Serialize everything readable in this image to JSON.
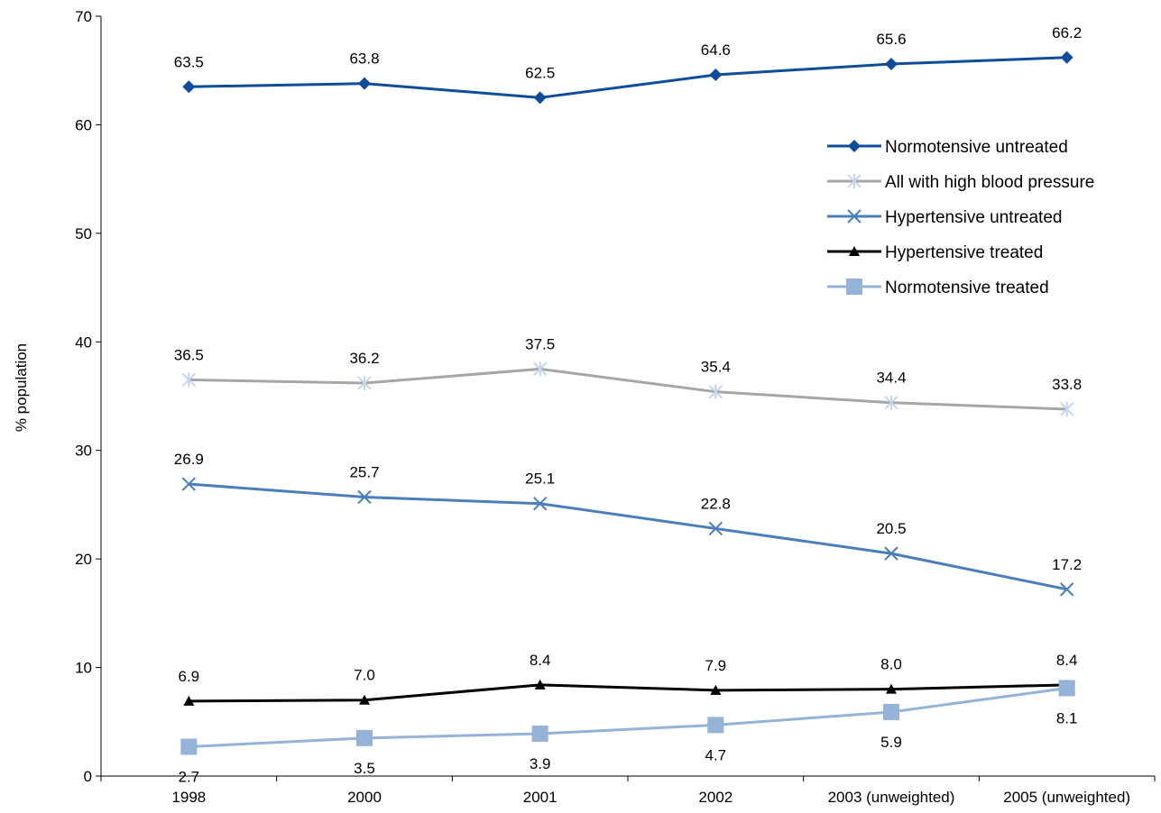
{
  "chart_data": {
    "type": "line",
    "categories": [
      "1998",
      "2000",
      "2001",
      "2002",
      "2003 (unweighted)",
      "2005 (unweighted)"
    ],
    "ylabel": "% population",
    "xlabel": "",
    "title": "",
    "ylim": [
      0,
      70
    ],
    "yticks": [
      0,
      10,
      20,
      30,
      40,
      50,
      60,
      70
    ],
    "grid": false,
    "legend_position": "right",
    "series": [
      {
        "name": "Normotensive untreated",
        "values": [
          63.5,
          63.8,
          62.5,
          64.6,
          65.6,
          66.2
        ],
        "labels": [
          "63.5",
          "63.8",
          "62.5",
          "64.6",
          "65.6",
          "66.2"
        ],
        "label_position": "above",
        "color": "#0F4C9A",
        "marker": "diamond"
      },
      {
        "name": "All with high blood pressure",
        "values": [
          36.5,
          36.2,
          37.5,
          35.4,
          34.4,
          33.8
        ],
        "labels": [
          "36.5",
          "36.2",
          "37.5",
          "35.4",
          "34.4",
          "33.8"
        ],
        "label_position": "above",
        "color": "#A6A6A6",
        "marker_color": "#C5D5EA",
        "marker": "asterisk"
      },
      {
        "name": "Hypertensive untreated",
        "values": [
          26.9,
          25.7,
          25.1,
          22.8,
          20.5,
          17.2
        ],
        "labels": [
          "26.9",
          "25.7",
          "25.1",
          "22.8",
          "20.5",
          "17.2"
        ],
        "label_position": "above",
        "color": "#4A7EBB",
        "marker": "x"
      },
      {
        "name": "Hypertensive treated",
        "values": [
          6.9,
          7.0,
          8.4,
          7.9,
          8.0,
          8.4
        ],
        "labels": [
          "6.9",
          "7.0",
          "8.4",
          "7.9",
          "8.0",
          "8.4"
        ],
        "label_position": "above",
        "color": "#000000",
        "marker": "triangle"
      },
      {
        "name": "Normotensive treated",
        "values": [
          2.7,
          3.5,
          3.9,
          4.7,
          5.9,
          8.1
        ],
        "labels": [
          "2.7",
          "3.5",
          "3.9",
          "4.7",
          "5.9",
          "8.1"
        ],
        "label_position": "below",
        "color": "#95B3D7",
        "marker": "square"
      }
    ]
  }
}
